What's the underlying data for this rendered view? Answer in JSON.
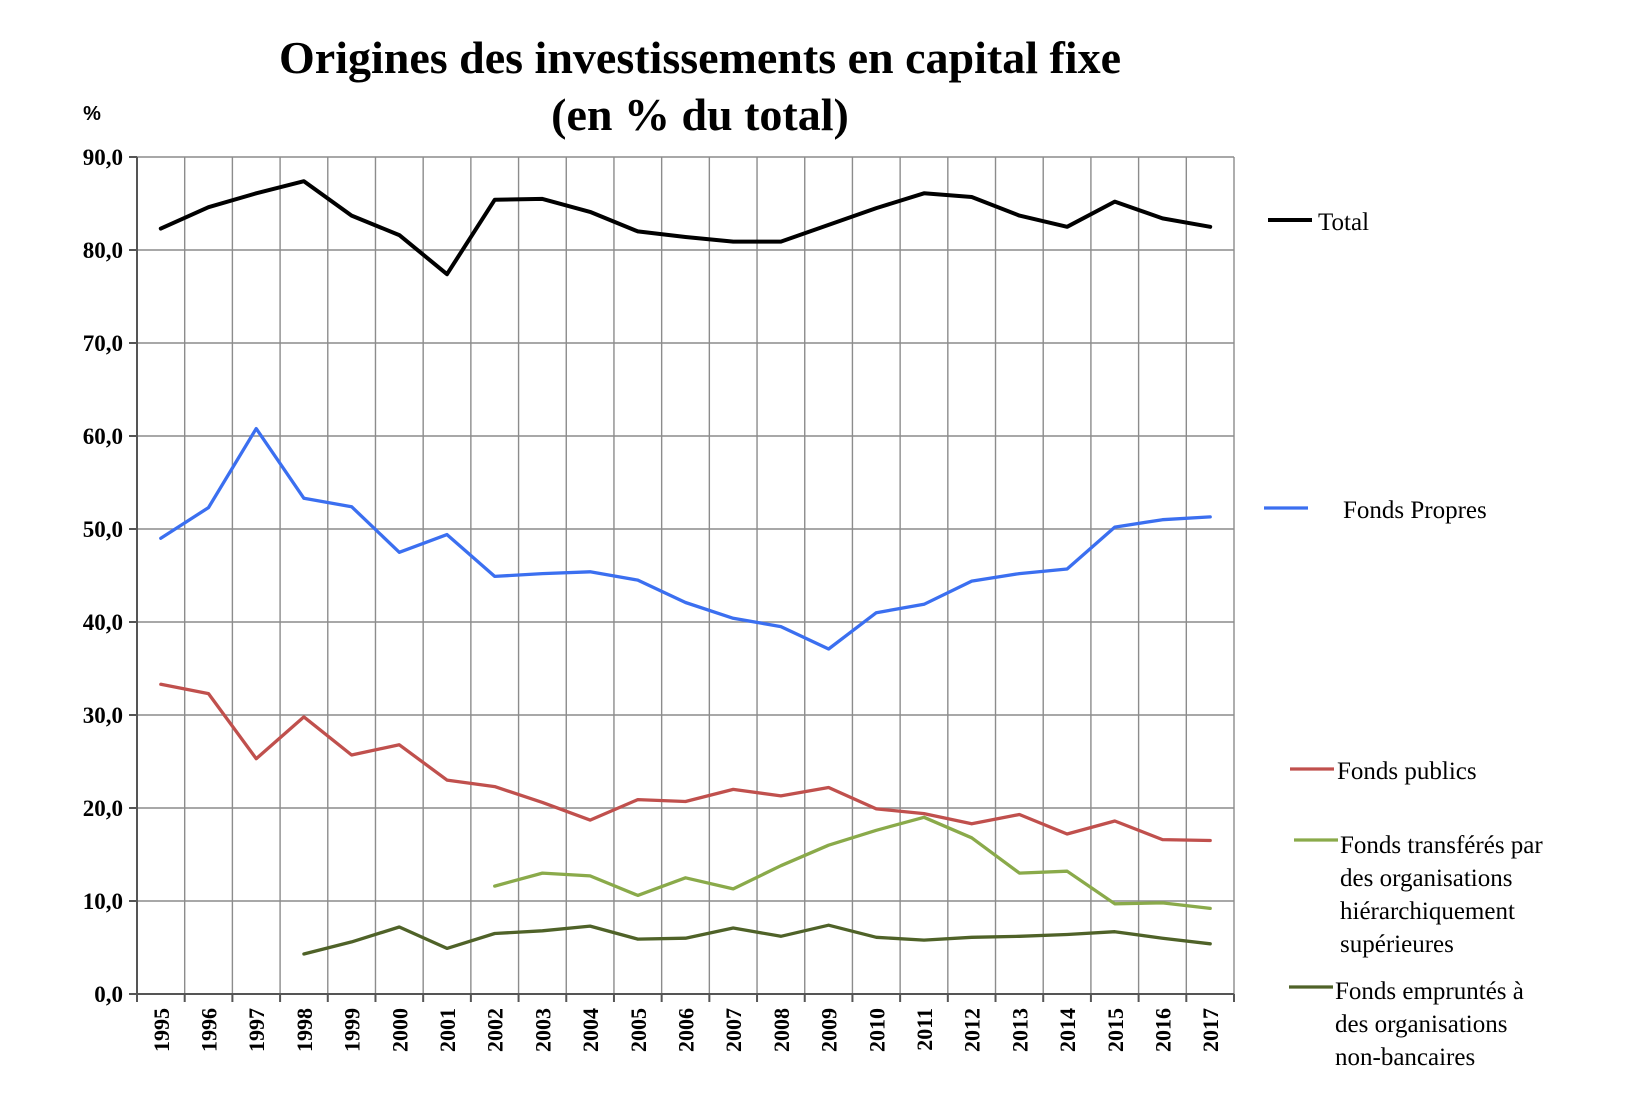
{
  "chart_data": {
    "type": "line",
    "title": "Origines des investissements en capital fixe",
    "subtitle": "(en % du total)",
    "ylabel": "%",
    "ylim": [
      0,
      90
    ],
    "yticks": [
      "0,0",
      "10,0",
      "20,0",
      "30,0",
      "40,0",
      "50,0",
      "60,0",
      "70,0",
      "80,0",
      "90,0"
    ],
    "grid": true,
    "legend_position": "right",
    "categories": [
      "1995",
      "1996",
      "1997",
      "1998",
      "1999",
      "2000",
      "2001",
      "2002",
      "2003",
      "2004",
      "2005",
      "2006",
      "2007",
      "2008",
      "2009",
      "2010",
      "2011",
      "2012",
      "2013",
      "2014",
      "2015",
      "2016",
      "2017"
    ],
    "series": [
      {
        "name": "Total",
        "color": "#000000",
        "legend_lines": [
          "Total"
        ],
        "values": [
          82.3,
          84.6,
          86.1,
          87.4,
          83.7,
          81.6,
          77.4,
          85.4,
          85.5,
          84.1,
          82.0,
          81.4,
          80.9,
          80.9,
          82.7,
          84.5,
          86.1,
          85.7,
          83.7,
          82.5,
          85.2,
          83.4,
          82.5
        ]
      },
      {
        "name": "Fonds Propres",
        "color": "#3b6ff0",
        "legend_lines": [
          "Fonds Propres"
        ],
        "values": [
          49.0,
          52.3,
          60.8,
          53.3,
          52.4,
          47.5,
          49.4,
          44.9,
          45.2,
          45.4,
          44.5,
          42.1,
          40.4,
          39.5,
          37.1,
          41.0,
          41.9,
          44.4,
          45.2,
          45.7,
          50.2,
          51.0,
          51.3
        ]
      },
      {
        "name": "Fonds publics",
        "color": "#c0504d",
        "legend_lines": [
          "Fonds publics"
        ],
        "values": [
          33.3,
          32.3,
          25.3,
          29.8,
          25.7,
          26.8,
          23.0,
          22.3,
          20.6,
          18.7,
          20.9,
          20.7,
          22.0,
          21.3,
          22.2,
          19.9,
          19.4,
          18.3,
          19.3,
          17.2,
          18.6,
          16.6,
          16.5
        ]
      },
      {
        "name": "Fonds transférés par des organisations hiérarchiquement supérieures",
        "color": "#8aaa4a",
        "legend_lines": [
          "Fonds transférés par",
          "des organisations",
          "hiérarchiquement",
          "supérieures"
        ],
        "values": [
          null,
          null,
          null,
          null,
          null,
          null,
          null,
          11.6,
          13.0,
          12.7,
          10.6,
          12.5,
          11.3,
          13.8,
          16.0,
          17.6,
          19.0,
          16.8,
          13.0,
          13.2,
          9.7,
          9.8,
          9.2
        ]
      },
      {
        "name": "Fonds empruntés à des organisations non-bancaires",
        "color": "#4f6228",
        "legend_lines": [
          "Fonds empruntés à",
          "des organisations",
          "non-bancaires"
        ],
        "values": [
          null,
          null,
          null,
          4.3,
          5.6,
          7.2,
          4.9,
          6.5,
          6.8,
          7.3,
          5.9,
          6.0,
          7.1,
          6.2,
          7.4,
          6.1,
          5.8,
          6.1,
          6.2,
          6.4,
          6.7,
          6.0,
          5.4
        ]
      }
    ]
  }
}
